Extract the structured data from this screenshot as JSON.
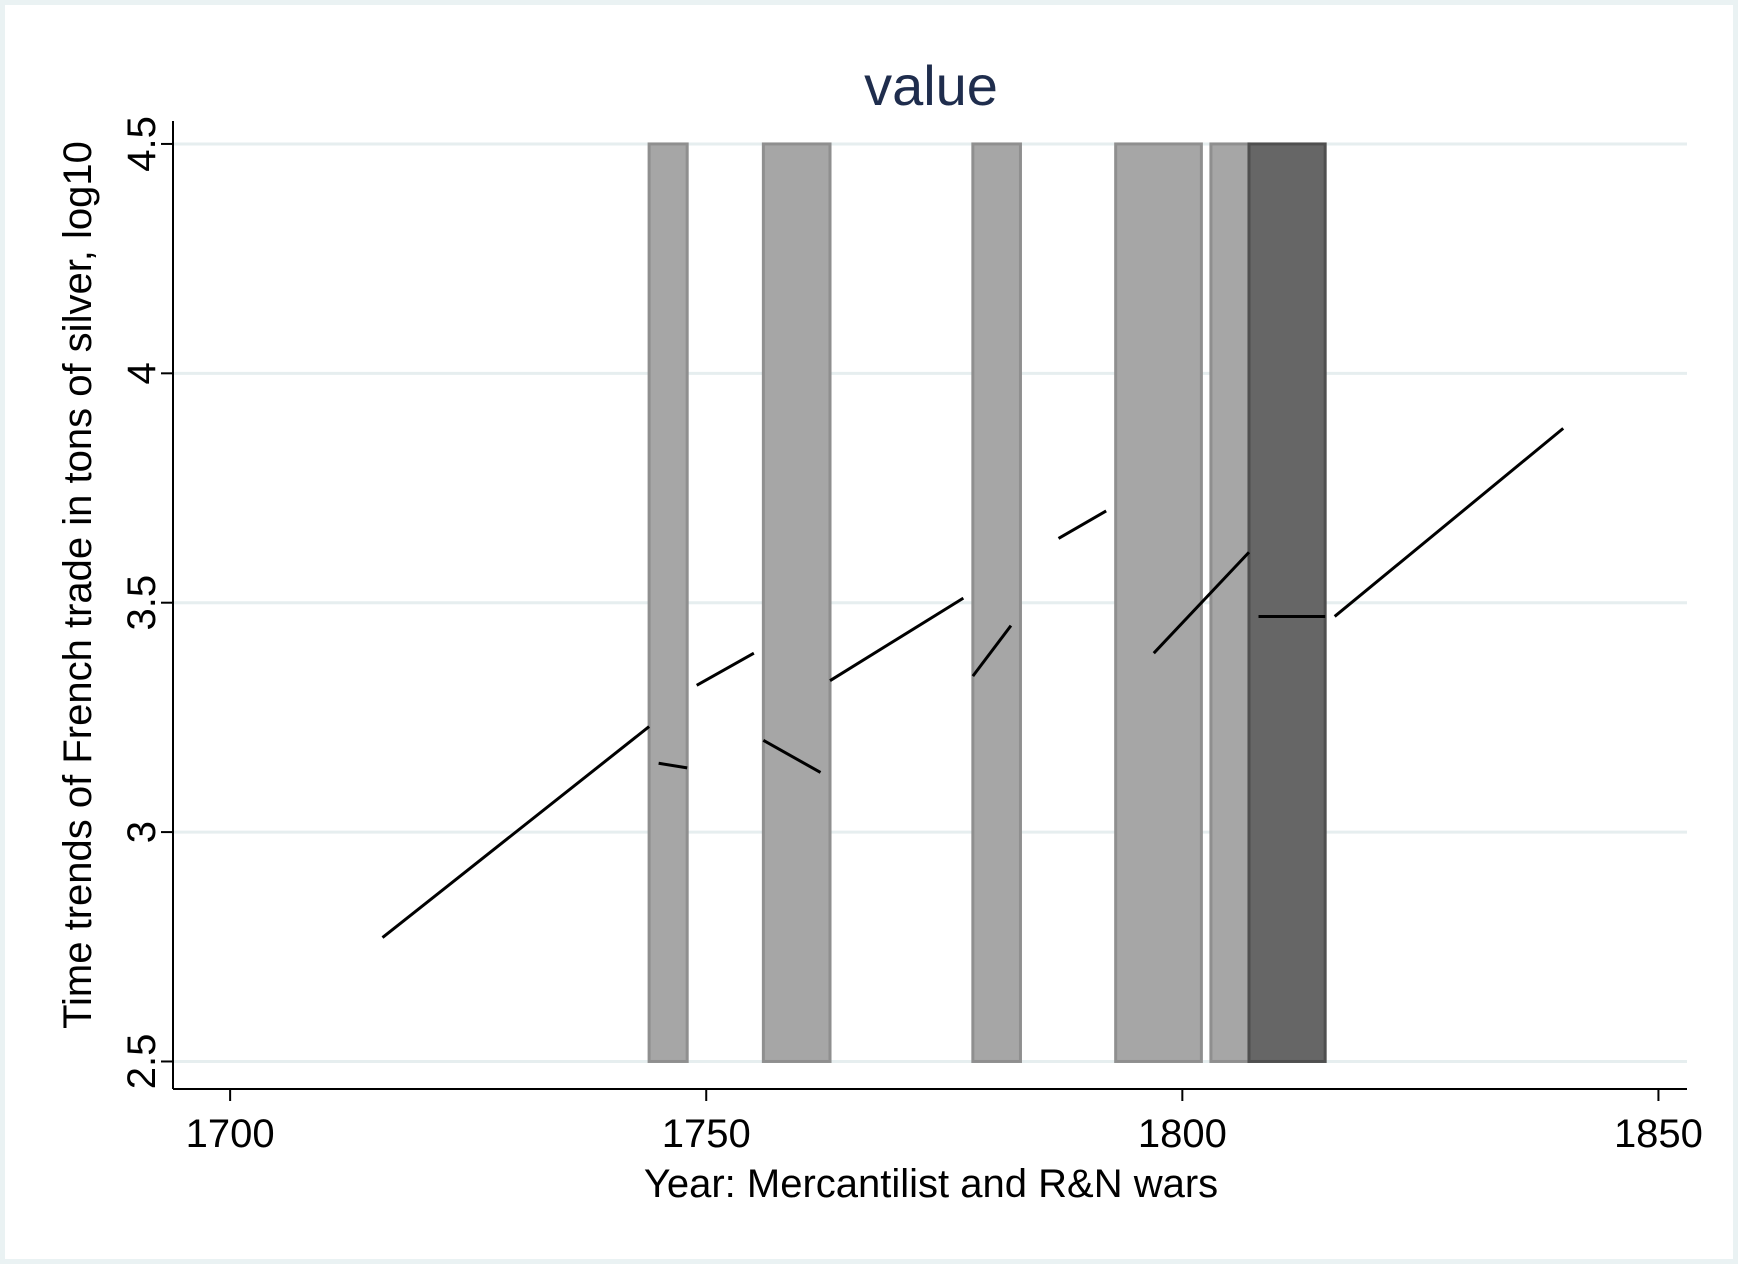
{
  "chart_data": {
    "type": "line",
    "title": "value",
    "xlabel": "Year: Mercantilist and R&N wars",
    "ylabel": "Time trends of French trade in tons of silver, log10",
    "xlim": [
      1694,
      1853
    ],
    "ylim": [
      2.44,
      4.55
    ],
    "xticks": [
      1700,
      1750,
      1800,
      1850
    ],
    "yticks": [
      2.5,
      3,
      3.5,
      4,
      4.5
    ],
    "xtick_labels": [
      "1700",
      "1750",
      "1800",
      "1850"
    ],
    "ytick_labels": [
      "2.5",
      "3",
      "3.5",
      "4",
      "4.5"
    ],
    "grid": "horizontal",
    "legend": "none",
    "war_bands": [
      {
        "start": 1744,
        "end": 1748,
        "color": "#a6a6a6"
      },
      {
        "start": 1756,
        "end": 1763,
        "color": "#a6a6a6"
      },
      {
        "start": 1778,
        "end": 1783,
        "color": "#a6a6a6"
      },
      {
        "start": 1793,
        "end": 1802,
        "color": "#a6a6a6"
      },
      {
        "start": 1803,
        "end": 1807,
        "color": "#a6a6a6"
      },
      {
        "start": 1807,
        "end": 1815,
        "color": "#666666"
      }
    ],
    "series": [
      {
        "segments": [
          [
            [
              1716,
              2.77
            ],
            [
              1744,
              3.23
            ]
          ],
          [
            [
              1745,
              3.15
            ],
            [
              1748,
              3.14
            ]
          ],
          [
            [
              1749,
              3.32
            ],
            [
              1755,
              3.39
            ]
          ],
          [
            [
              1756,
              3.2
            ],
            [
              1762,
              3.13
            ]
          ],
          [
            [
              1763,
              3.33
            ],
            [
              1777,
              3.51
            ]
          ],
          [
            [
              1778,
              3.34
            ],
            [
              1782,
              3.45
            ]
          ],
          [
            [
              1787,
              3.64
            ],
            [
              1792,
              3.7
            ]
          ],
          [
            [
              1797,
              3.39
            ],
            [
              1807,
              3.61
            ]
          ],
          [
            [
              1808,
              3.47
            ],
            [
              1815,
              3.47
            ]
          ],
          [
            [
              1816,
              3.47
            ],
            [
              1840,
              3.88
            ]
          ]
        ]
      }
    ],
    "colors": {
      "line": "#000000",
      "title": "#1f2d4d",
      "grid": "#e6eeef",
      "axis": "#000000"
    }
  }
}
